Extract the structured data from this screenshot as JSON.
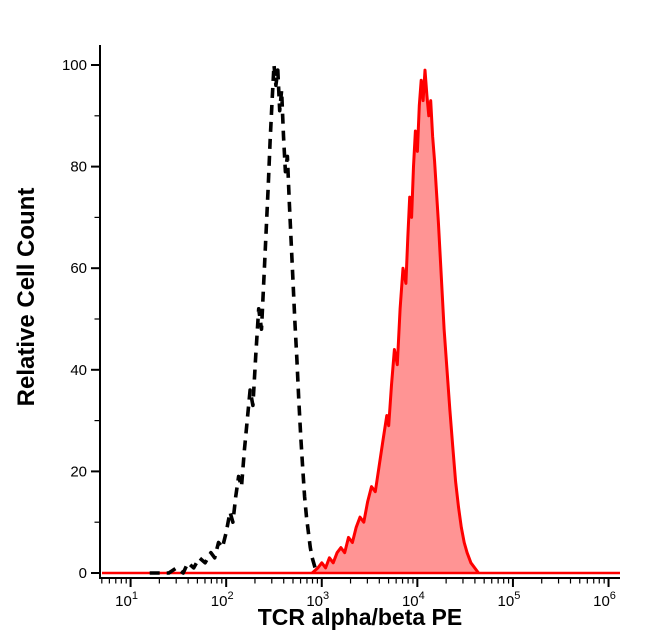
{
  "chart_data": {
    "type": "area",
    "title": "",
    "xlabel": "TCR alpha/beta PE",
    "ylabel": "Relative Cell Count",
    "x_scale": "log10",
    "xlim_log10": [
      0.68,
      6.12
    ],
    "x_tick_base": "10",
    "x_ticks_exponents": [
      1,
      2,
      3,
      4,
      5,
      6
    ],
    "x_minor_ticks": true,
    "ylim": [
      0,
      100
    ],
    "y_ticks": [
      0,
      20,
      40,
      60,
      80,
      100
    ],
    "y_minor_step": 10,
    "grid": false,
    "legend_position": "none",
    "axis_color": "#000000",
    "baseline": {
      "color": "#fe0000",
      "y": 0,
      "stroke_width": 2.5
    },
    "series": [
      {
        "name": "negative-control-dashed",
        "type": "line",
        "style": "dashed",
        "color": "#000000",
        "stroke_width": 3.6,
        "dash": "10 7",
        "points_log10x_y": [
          [
            1.2,
            0
          ],
          [
            1.32,
            0
          ],
          [
            1.4,
            0
          ],
          [
            1.48,
            1
          ],
          [
            1.55,
            0
          ],
          [
            1.6,
            2
          ],
          [
            1.66,
            1
          ],
          [
            1.72,
            3
          ],
          [
            1.78,
            2
          ],
          [
            1.84,
            4
          ],
          [
            1.88,
            3
          ],
          [
            1.92,
            6
          ],
          [
            1.96,
            5
          ],
          [
            2.0,
            8
          ],
          [
            2.04,
            12
          ],
          [
            2.07,
            10
          ],
          [
            2.1,
            15
          ],
          [
            2.13,
            19
          ],
          [
            2.16,
            17
          ],
          [
            2.19,
            24
          ],
          [
            2.22,
            30
          ],
          [
            2.25,
            36
          ],
          [
            2.28,
            33
          ],
          [
            2.31,
            43
          ],
          [
            2.34,
            52
          ],
          [
            2.37,
            48
          ],
          [
            2.4,
            60
          ],
          [
            2.42,
            68
          ],
          [
            2.44,
            76
          ],
          [
            2.46,
            85
          ],
          [
            2.48,
            93
          ],
          [
            2.5,
            100
          ],
          [
            2.52,
            96
          ],
          [
            2.54,
            99
          ],
          [
            2.56,
            91
          ],
          [
            2.58,
            95
          ],
          [
            2.6,
            86
          ],
          [
            2.62,
            79
          ],
          [
            2.64,
            82
          ],
          [
            2.66,
            73
          ],
          [
            2.68,
            65
          ],
          [
            2.7,
            57
          ],
          [
            2.72,
            49
          ],
          [
            2.74,
            42
          ],
          [
            2.76,
            34
          ],
          [
            2.78,
            27
          ],
          [
            2.8,
            21
          ],
          [
            2.82,
            15
          ],
          [
            2.84,
            11
          ],
          [
            2.86,
            8
          ],
          [
            2.88,
            5
          ],
          [
            2.9,
            3
          ],
          [
            2.93,
            1
          ],
          [
            2.96,
            0
          ]
        ]
      },
      {
        "name": "tcr-alpha-beta-pe-stained",
        "type": "area",
        "style": "solid",
        "color": "#fe0000",
        "fill": "#fe0000",
        "fill_opacity": 0.42,
        "stroke_width": 3,
        "points_log10x_y": [
          [
            2.9,
            0
          ],
          [
            2.96,
            1
          ],
          [
            3.0,
            2
          ],
          [
            3.04,
            1
          ],
          [
            3.08,
            3
          ],
          [
            3.12,
            2
          ],
          [
            3.16,
            4
          ],
          [
            3.2,
            5
          ],
          [
            3.24,
            4
          ],
          [
            3.28,
            7
          ],
          [
            3.32,
            6
          ],
          [
            3.36,
            9
          ],
          [
            3.4,
            11
          ],
          [
            3.44,
            10
          ],
          [
            3.48,
            14
          ],
          [
            3.52,
            17
          ],
          [
            3.56,
            16
          ],
          [
            3.6,
            21
          ],
          [
            3.64,
            26
          ],
          [
            3.68,
            31
          ],
          [
            3.7,
            29
          ],
          [
            3.73,
            37
          ],
          [
            3.76,
            44
          ],
          [
            3.79,
            41
          ],
          [
            3.82,
            52
          ],
          [
            3.85,
            60
          ],
          [
            3.88,
            57
          ],
          [
            3.9,
            66
          ],
          [
            3.92,
            74
          ],
          [
            3.94,
            70
          ],
          [
            3.96,
            80
          ],
          [
            3.98,
            87
          ],
          [
            4.0,
            83
          ],
          [
            4.02,
            92
          ],
          [
            4.04,
            97
          ],
          [
            4.06,
            93
          ],
          [
            4.08,
            99
          ],
          [
            4.1,
            94
          ],
          [
            4.12,
            90
          ],
          [
            4.14,
            93
          ],
          [
            4.16,
            86
          ],
          [
            4.18,
            81
          ],
          [
            4.2,
            75
          ],
          [
            4.22,
            69
          ],
          [
            4.24,
            62
          ],
          [
            4.26,
            55
          ],
          [
            4.28,
            48
          ],
          [
            4.31,
            40
          ],
          [
            4.34,
            32
          ],
          [
            4.37,
            25
          ],
          [
            4.4,
            18
          ],
          [
            4.43,
            13
          ],
          [
            4.46,
            9
          ],
          [
            4.49,
            6
          ],
          [
            4.52,
            4
          ],
          [
            4.56,
            2
          ],
          [
            4.6,
            1
          ],
          [
            4.64,
            0
          ]
        ]
      }
    ]
  }
}
